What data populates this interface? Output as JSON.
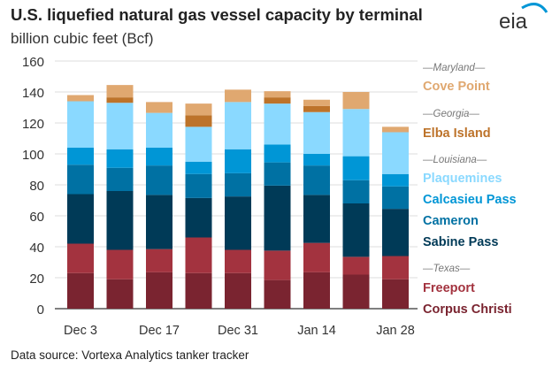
{
  "title": "U.S. liquefied natural gas vessel capacity by terminal",
  "subtitle": "billion cubic feet (Bcf)",
  "source": "Data source: Vortexa Analytics tanker tracker",
  "logo_text": "eia",
  "chart_data": {
    "type": "bar",
    "stacked": true,
    "title": "U.S. liquefied natural gas vessel capacity by terminal",
    "ylabel": "billion cubic feet (Bcf)",
    "ylim": [
      0,
      160
    ],
    "y_ticks": [
      "0",
      "20",
      "40",
      "60",
      "80",
      "100",
      "120",
      "140",
      "160"
    ],
    "grid": true,
    "legend_position": "right",
    "x_tick_labels": [
      "Dec 3",
      "",
      "Dec 17",
      "",
      "Dec 31",
      "",
      "Jan 14",
      "",
      "Jan 28"
    ],
    "legend_groups": [
      {
        "state": "—Maryland—",
        "series": [
          "Cove Point"
        ]
      },
      {
        "state": "—Georgia—",
        "series": [
          "Elba Island"
        ]
      },
      {
        "state": "—Louisiana—",
        "series": [
          "Plaquemines",
          "Calcasieu Pass",
          "Cameron",
          "Sabine Pass"
        ]
      },
      {
        "state": "—Texas—",
        "series": [
          "Freeport",
          "Corpus Christi"
        ]
      }
    ],
    "series": [
      {
        "name": "Corpus Christi",
        "color": "#7a2430",
        "values": [
          23,
          19,
          23.5,
          23,
          23,
          18.5,
          23.5,
          22,
          19
        ]
      },
      {
        "name": "Freeport",
        "color": "#a3333f",
        "values": [
          19,
          19,
          15,
          23,
          15,
          19,
          19,
          11.5,
          15
        ]
      },
      {
        "name": "Sabine Pass",
        "color": "#003a57",
        "values": [
          32,
          38,
          35,
          25.5,
          34.5,
          42,
          31,
          34.5,
          30.5
        ]
      },
      {
        "name": "Cameron",
        "color": "#0071a3",
        "values": [
          19,
          15,
          19,
          15.5,
          15,
          15,
          19,
          15,
          14.5
        ]
      },
      {
        "name": "Calcasieu Pass",
        "color": "#0096d6",
        "values": [
          11,
          12,
          11.5,
          8,
          15.5,
          11.5,
          7.5,
          15.5,
          8
        ]
      },
      {
        "name": "Plaquemines",
        "color": "#8ad9ff",
        "values": [
          30,
          30,
          22.5,
          22.5,
          30.5,
          26.5,
          27,
          30.5,
          27
        ]
      },
      {
        "name": "Elba Island",
        "color": "#bd732a",
        "values": [
          0,
          3.5,
          0,
          7.5,
          0,
          4,
          4,
          0,
          0
        ]
      },
      {
        "name": "Cove Point",
        "color": "#e0a870",
        "values": [
          4,
          8,
          7,
          7.5,
          8,
          4,
          4,
          11,
          3.5
        ]
      }
    ]
  }
}
